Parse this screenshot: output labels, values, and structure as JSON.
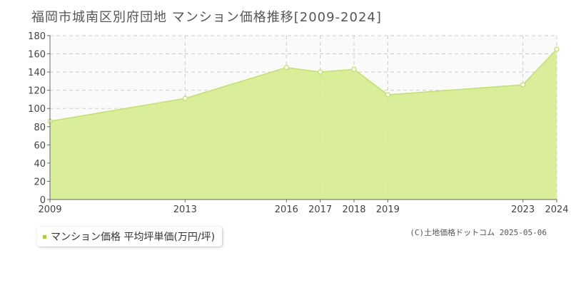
{
  "colors": {
    "fill": "#d8ec93",
    "line": "#c2e06a",
    "grid": "#cccccc",
    "axis": "#666666",
    "legend_swatch": "#a8cc3a"
  },
  "credit": "(C)土地価格ドットコム 2025-05-06",
  "chart_data": {
    "type": "area",
    "title": "福岡市城南区別府団地 マンション価格推移[2009-2024]",
    "x": [
      "2009",
      "2013",
      "2016",
      "2017",
      "2018",
      "2019",
      "2023",
      "2024"
    ],
    "series": [
      {
        "name": "マンション価格 平均坪単価(万円/坪)",
        "values": [
          86,
          111,
          145,
          140,
          143,
          115,
          126,
          165
        ]
      }
    ],
    "ylim": [
      0,
      180
    ],
    "yticks": [
      "0",
      "20",
      "40",
      "60",
      "80",
      "100",
      "120",
      "140",
      "160",
      "180"
    ],
    "grid": true,
    "legend_position": "bottom-left"
  }
}
